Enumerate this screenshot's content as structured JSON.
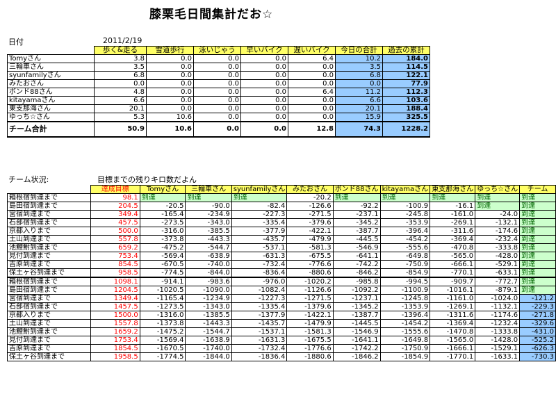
{
  "title": "膝栗毛日間集計だお☆",
  "date_label": "日付",
  "date_value": "2011/2/19",
  "daily": {
    "headers": [
      "歩く&走る",
      "雪道歩行",
      "泳いじゃう",
      "早いバイク",
      "遅いバイク",
      "今日の合計",
      "過去の累計"
    ],
    "rows": [
      {
        "name": "Tomyさん",
        "v": [
          "3.8",
          "0.0",
          "0.0",
          "0.0",
          "6.4",
          "10.2",
          "184.0"
        ]
      },
      {
        "name": "三輪車さん",
        "v": [
          "3.5",
          "0.0",
          "0.0",
          "0.0",
          "0.0",
          "3.5",
          "114.5"
        ]
      },
      {
        "name": "syunfamilyさん",
        "v": [
          "6.8",
          "0.0",
          "0.0",
          "0.0",
          "0.0",
          "6.8",
          "122.1"
        ]
      },
      {
        "name": "みたおさん",
        "v": [
          "0.0",
          "0.0",
          "0.0",
          "0.0",
          "0.0",
          "0.0",
          "77.9"
        ]
      },
      {
        "name": "ボンド88さん",
        "v": [
          "4.8",
          "0.0",
          "0.0",
          "0.0",
          "6.4",
          "11.2",
          "112.3"
        ]
      },
      {
        "name": "kitayamaさん",
        "v": [
          "6.6",
          "0.0",
          "0.0",
          "0.0",
          "0.0",
          "6.6",
          "103.6"
        ]
      },
      {
        "name": "東支那海さん",
        "v": [
          "20.1",
          "0.0",
          "0.0",
          "0.0",
          "0.0",
          "20.1",
          "188.4"
        ]
      },
      {
        "name": "ゆっち☆さん",
        "v": [
          "5.3",
          "10.6",
          "0.0",
          "0.0",
          "0.0",
          "15.9",
          "325.5"
        ]
      }
    ],
    "total": {
      "name": "チーム合計",
      "v": [
        "50.9",
        "10.6",
        "0.0",
        "0.0",
        "12.8",
        "74.3",
        "1228.2"
      ]
    }
  },
  "status_label": "チーム状況:",
  "status_note": "目標までの残りキロ数だよん",
  "status": {
    "headers": [
      "達成目標",
      "Tomyさん",
      "三輪車さん",
      "syunfamilyさん",
      "みたおさん",
      "ボンド88さん",
      "kitayamaさん",
      "東支那海さん",
      "ゆっち☆さん",
      "チーム"
    ],
    "reached": "到達",
    "rows": [
      {
        "name": "箱根宿到達まで",
        "t": "98.1",
        "v": [
          "到達",
          "到達",
          "到達",
          "-20.2",
          "到達",
          "到達",
          "到達",
          "到達",
          "到達"
        ]
      },
      {
        "name": "島田宿到達まで",
        "t": "204.5",
        "v": [
          "-20.5",
          "-90.0",
          "-82.4",
          "-126.6",
          "-92.2",
          "-100.9",
          "-16.1",
          "到達",
          "到達"
        ]
      },
      {
        "name": "宮宿到達まで",
        "t": "349.4",
        "v": [
          "-165.4",
          "-234.9",
          "-227.3",
          "-271.5",
          "-237.1",
          "-245.8",
          "-161.0",
          "-24.0",
          "到達"
        ]
      },
      {
        "name": "石部宿到達まで",
        "t": "457.5",
        "v": [
          "-273.5",
          "-343.0",
          "-335.4",
          "-379.6",
          "-345.2",
          "-353.9",
          "-269.1",
          "-132.1",
          "到達"
        ]
      },
      {
        "name": "京都入りまで",
        "t": "500.0",
        "v": [
          "-316.0",
          "-385.5",
          "-377.9",
          "-422.1",
          "-387.7",
          "-396.4",
          "-311.6",
          "-174.6",
          "到達"
        ]
      },
      {
        "name": "土山到達まで",
        "t": "557.8",
        "v": [
          "-373.8",
          "-443.3",
          "-435.7",
          "-479.9",
          "-445.5",
          "-454.2",
          "-369.4",
          "-232.4",
          "到達"
        ]
      },
      {
        "name": "池鯉鮒到達まで",
        "t": "659.2",
        "v": [
          "-475.2",
          "-544.7",
          "-537.1",
          "-581.3",
          "-546.9",
          "-555.6",
          "-470.8",
          "-333.8",
          "到達"
        ]
      },
      {
        "name": "見付到達まで",
        "t": "753.4",
        "v": [
          "-569.4",
          "-638.9",
          "-631.3",
          "-675.5",
          "-641.1",
          "-649.8",
          "-565.0",
          "-428.0",
          "到達"
        ]
      },
      {
        "name": "吉原到達まで",
        "t": "854.5",
        "v": [
          "-670.5",
          "-740.0",
          "-732.4",
          "-776.6",
          "-742.2",
          "-750.9",
          "-666.1",
          "-529.1",
          "到達"
        ]
      },
      {
        "name": "保土ヶ谷到達まで",
        "t": "958.5",
        "v": [
          "-774.5",
          "-844.0",
          "-836.4",
          "-880.6",
          "-846.2",
          "-854.9",
          "-770.1",
          "-633.1",
          "到達"
        ]
      },
      {
        "name": "箱根宿到達まで",
        "t": "1098.1",
        "v": [
          "-914.1",
          "-983.6",
          "-976.0",
          "-1020.2",
          "-985.8",
          "-994.5",
          "-909.7",
          "-772.7",
          "到達"
        ]
      },
      {
        "name": "島田宿到達まで",
        "t": "1204.5",
        "v": [
          "-1020.5",
          "-1090.0",
          "-1082.4",
          "-1126.6",
          "-1092.2",
          "-1100.9",
          "-1016.1",
          "-879.1",
          "到達"
        ]
      },
      {
        "name": "宮宿到達まで",
        "t": "1349.4",
        "v": [
          "-1165.4",
          "-1234.9",
          "-1227.3",
          "-1271.5",
          "-1237.1",
          "-1245.8",
          "-1161.0",
          "-1024.0",
          "-121.2"
        ]
      },
      {
        "name": "石部宿到達まで",
        "t": "1457.5",
        "v": [
          "-1273.5",
          "-1343.0",
          "-1335.4",
          "-1379.6",
          "-1345.2",
          "-1353.9",
          "-1269.1",
          "-1132.1",
          "-229.3"
        ]
      },
      {
        "name": "京都入りまで",
        "t": "1500.0",
        "v": [
          "-1316.0",
          "-1385.5",
          "-1377.9",
          "-1422.1",
          "-1387.7",
          "-1396.4",
          "-1311.6",
          "-1174.6",
          "-271.8"
        ]
      },
      {
        "name": "土山到達まで",
        "t": "1557.8",
        "v": [
          "-1373.8",
          "-1443.3",
          "-1435.7",
          "-1479.9",
          "-1445.5",
          "-1454.2",
          "-1369.4",
          "-1232.4",
          "-329.6"
        ]
      },
      {
        "name": "池鯉鮒到達まで",
        "t": "1659.2",
        "v": [
          "-1475.2",
          "-1544.7",
          "-1537.1",
          "-1581.3",
          "-1546.9",
          "-1555.6",
          "-1470.8",
          "-1333.8",
          "-431.0"
        ]
      },
      {
        "name": "見付到達まで",
        "t": "1753.4",
        "v": [
          "-1569.4",
          "-1638.9",
          "-1631.3",
          "-1675.5",
          "-1641.1",
          "-1649.8",
          "-1565.0",
          "-1428.0",
          "-525.2"
        ]
      },
      {
        "name": "吉原到達まで",
        "t": "1854.5",
        "v": [
          "-1670.5",
          "-1740.0",
          "-1732.4",
          "-1776.6",
          "-1742.2",
          "-1750.9",
          "-1666.1",
          "-1529.1",
          "-626.3"
        ]
      },
      {
        "name": "保土ヶ谷到達まで",
        "t": "1958.5",
        "v": [
          "-1774.5",
          "-1844.0",
          "-1836.4",
          "-1880.6",
          "-1846.2",
          "-1854.9",
          "-1770.1",
          "-1633.1",
          "-730.3"
        ]
      }
    ]
  }
}
